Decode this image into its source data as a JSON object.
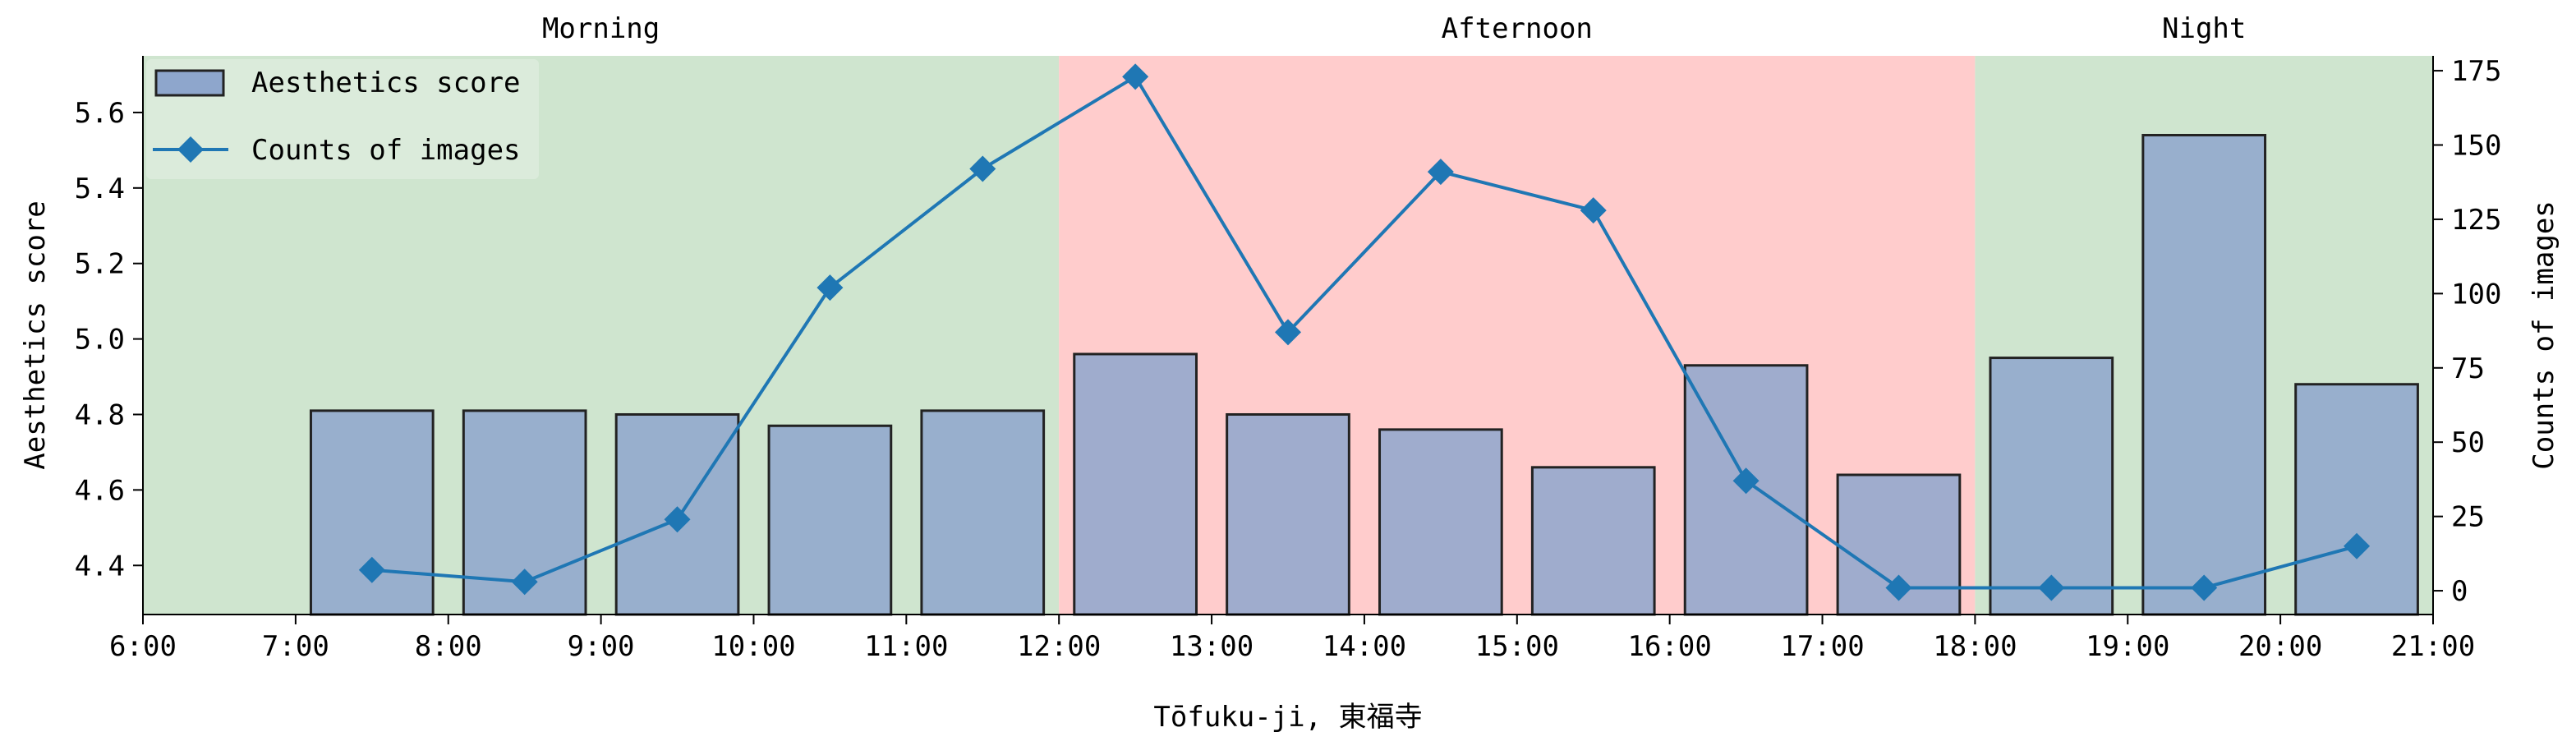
{
  "chart_data": {
    "type": "bar+line",
    "xlabel": "Tōfuku-ji, 東福寺",
    "x_ticks": [
      "6:00",
      "7:00",
      "8:00",
      "9:00",
      "10:00",
      "11:00",
      "12:00",
      "13:00",
      "14:00",
      "15:00",
      "16:00",
      "17:00",
      "18:00",
      "19:00",
      "20:00",
      "21:00"
    ],
    "x_range": [
      6,
      21
    ],
    "periods": [
      {
        "label": "Morning",
        "start": 6,
        "end": 12,
        "color": "#cfe5cf"
      },
      {
        "label": "Afternoon",
        "start": 12,
        "end": 18,
        "color": "#ffcccc"
      },
      {
        "label": "Night",
        "start": 18,
        "end": 21,
        "color": "#cfe5cf"
      }
    ],
    "left_axis": {
      "label": "Aesthetics score",
      "range": [
        4.27,
        5.75
      ],
      "ticks": [
        4.4,
        4.6,
        4.8,
        5.0,
        5.2,
        5.4,
        5.6
      ],
      "tick_labels": [
        "4.4",
        "4.6",
        "4.8",
        "5.0",
        "5.2",
        "5.4",
        "5.6"
      ]
    },
    "right_axis": {
      "label": "Counts of images",
      "range": [
        -8,
        180
      ],
      "ticks": [
        0,
        25,
        50,
        75,
        100,
        125,
        150,
        175
      ],
      "tick_labels": [
        "0",
        "25",
        "50",
        "75",
        "100",
        "125",
        "150",
        "175"
      ]
    },
    "bar_series": {
      "name": "Aesthetics score",
      "color": "#8ea6cc",
      "edge_color": "#222222",
      "x": [
        7.5,
        8.5,
        9.5,
        10.5,
        11.5,
        12.5,
        13.5,
        14.5,
        15.5,
        16.5,
        17.5,
        18.5,
        19.5,
        20.5
      ],
      "values": [
        4.81,
        4.81,
        4.8,
        4.77,
        4.81,
        4.96,
        4.8,
        4.76,
        4.66,
        4.93,
        4.64,
        4.95,
        5.54,
        4.88
      ]
    },
    "line_series": {
      "name": "Counts of images",
      "color": "#1f77b4",
      "x": [
        7.5,
        8.5,
        9.5,
        10.5,
        11.5,
        12.5,
        13.5,
        14.5,
        15.5,
        16.5,
        17.5,
        18.5,
        19.5,
        20.5
      ],
      "values": [
        7,
        3,
        24,
        102,
        142,
        173,
        87,
        141,
        128,
        37,
        1,
        1,
        1,
        15
      ]
    },
    "legend": {
      "placement": "top-left",
      "entries": [
        "Aesthetics score",
        "Counts of images"
      ]
    }
  }
}
